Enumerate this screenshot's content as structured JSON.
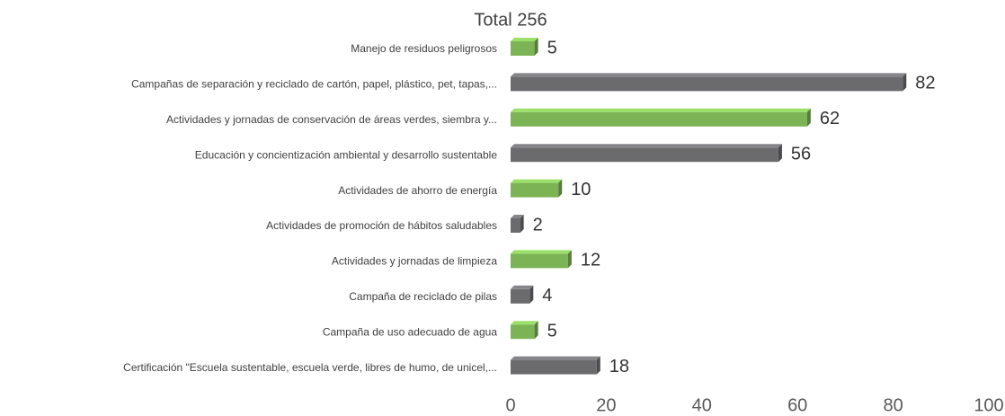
{
  "chart_data": {
    "type": "bar",
    "orientation": "horizontal",
    "title": "Total 256",
    "categories": [
      "Manejo de residuos peligrosos",
      "Campañas de separación y reciclado de cartón, papel, plástico, pet, tapas,...",
      "Actividades y jornadas de conservación de áreas verdes, siembra y...",
      "Educación y concientización ambiental y desarrollo sustentable",
      "Actividades de ahorro de energía",
      "Actividades de promoción de hábitos saludables",
      "Actividades y jornadas de limpieza",
      "Campaña de reciclado de pilas",
      "Campaña de uso adecuado de agua",
      "Certificación \"Escuela sustentable, escuela verde, libres de humo, de unicel,..."
    ],
    "values": [
      5,
      82,
      62,
      56,
      10,
      2,
      12,
      4,
      5,
      18
    ],
    "colors": [
      "#7cb354",
      "#6b6b6e",
      "#7cb354",
      "#6b6b6e",
      "#7cb354",
      "#6b6b6e",
      "#7cb354",
      "#6b6b6e",
      "#7cb354",
      "#6b6b6e"
    ],
    "xlim": [
      0,
      100
    ],
    "xticks": [
      0,
      20,
      40,
      60,
      80,
      100
    ],
    "grid": false
  }
}
